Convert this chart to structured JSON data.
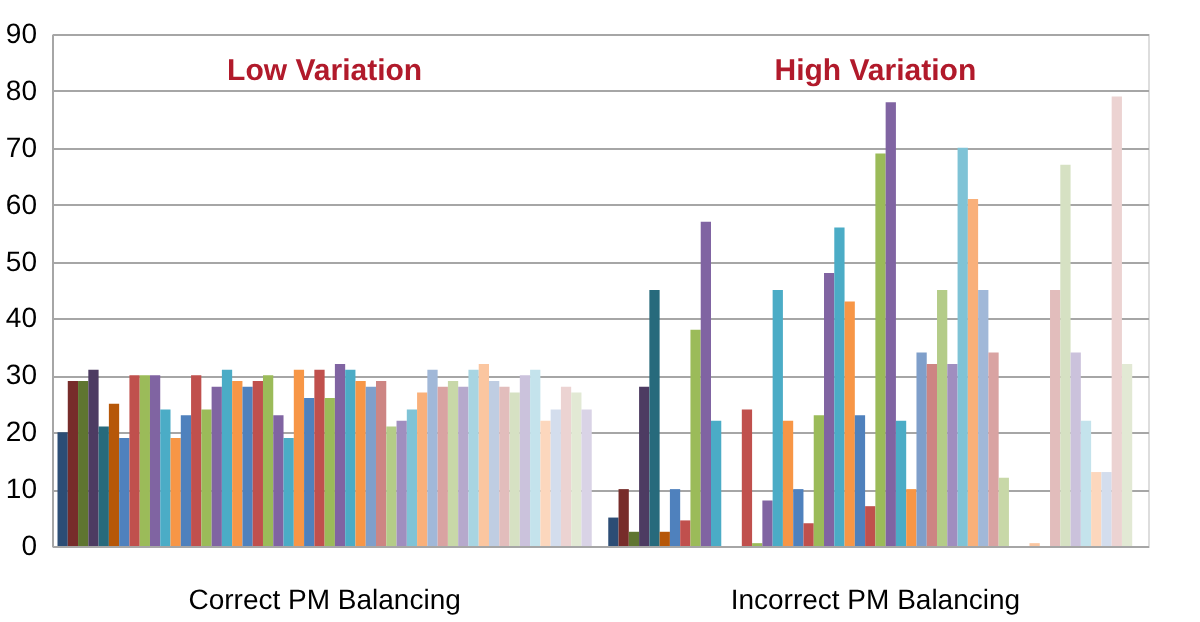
{
  "chart_data": {
    "type": "bar",
    "categories": [
      "Correct PM Balancing",
      "Incorrect PM Balancing"
    ],
    "annotations": [
      "Low Variation",
      "High Variation"
    ],
    "ylim": [
      0,
      90
    ],
    "yticks": [
      0,
      10,
      20,
      30,
      40,
      50,
      60,
      70,
      80,
      90
    ],
    "grid": "y",
    "legend": false,
    "series": [
      {
        "color": "#2c4d75",
        "values": [
          20,
          5
        ]
      },
      {
        "color": "#772c2a",
        "values": [
          29,
          10
        ]
      },
      {
        "color": "#5f7530",
        "values": [
          29,
          2.5
        ]
      },
      {
        "color": "#4d3b62",
        "values": [
          31,
          28
        ]
      },
      {
        "color": "#276a7c",
        "values": [
          21,
          45
        ]
      },
      {
        "color": "#b65708",
        "values": [
          25,
          2.5
        ]
      },
      {
        "color": "#4f81bd",
        "values": [
          19,
          10
        ]
      },
      {
        "color": "#c0504d",
        "values": [
          30,
          4.5
        ]
      },
      {
        "color": "#9bbb59",
        "values": [
          30,
          38
        ]
      },
      {
        "color": "#8064a2",
        "values": [
          30,
          57
        ]
      },
      {
        "color": "#4bacc6",
        "values": [
          24,
          22
        ]
      },
      {
        "color": "#f79646",
        "values": [
          19,
          0
        ]
      },
      {
        "color": "#4f81bd",
        "values": [
          23,
          0
        ]
      },
      {
        "color": "#c0504d",
        "values": [
          30,
          24
        ]
      },
      {
        "color": "#9bbb59",
        "values": [
          24,
          0.5
        ]
      },
      {
        "color": "#8064a2",
        "values": [
          28,
          8
        ]
      },
      {
        "color": "#4bacc6",
        "values": [
          31,
          45
        ]
      },
      {
        "color": "#f79646",
        "values": [
          29,
          22
        ]
      },
      {
        "color": "#4f81bd",
        "values": [
          28,
          10
        ]
      },
      {
        "color": "#c0504d",
        "values": [
          29,
          4
        ]
      },
      {
        "color": "#9bbb59",
        "values": [
          30,
          23
        ]
      },
      {
        "color": "#8064a2",
        "values": [
          23,
          48
        ]
      },
      {
        "color": "#4bacc6",
        "values": [
          19,
          56
        ]
      },
      {
        "color": "#f79646",
        "values": [
          31,
          43
        ]
      },
      {
        "color": "#4f81bd",
        "values": [
          26,
          23
        ]
      },
      {
        "color": "#c0504d",
        "values": [
          31,
          7
        ]
      },
      {
        "color": "#9bbb59",
        "values": [
          26,
          69
        ]
      },
      {
        "color": "#8064a2",
        "values": [
          32,
          78
        ]
      },
      {
        "color": "#4bacc6",
        "values": [
          31,
          22
        ]
      },
      {
        "color": "#f79646",
        "values": [
          29,
          10
        ]
      },
      {
        "color": "#7f9fca",
        "values": [
          28,
          34
        ]
      },
      {
        "color": "#cd8583",
        "values": [
          29,
          32
        ]
      },
      {
        "color": "#b4cc88",
        "values": [
          21,
          45
        ]
      },
      {
        "color": "#a08ebf",
        "values": [
          22,
          32
        ]
      },
      {
        "color": "#7fc3d6",
        "values": [
          24,
          70
        ]
      },
      {
        "color": "#f9b07a",
        "values": [
          27,
          61
        ]
      },
      {
        "color": "#a1b8d8",
        "values": [
          31,
          45
        ]
      },
      {
        "color": "#d9a3a2",
        "values": [
          28,
          34
        ]
      },
      {
        "color": "#c8d8a8",
        "values": [
          29,
          12
        ]
      },
      {
        "color": "#b6a9cc",
        "values": [
          28,
          null
        ]
      },
      {
        "color": "#a8d5e2",
        "values": [
          31,
          null
        ]
      },
      {
        "color": "#fbc6a0",
        "values": [
          32,
          0.5
        ]
      },
      {
        "color": "#bfcde2",
        "values": [
          29,
          0
        ]
      },
      {
        "color": "#e2bdbc",
        "values": [
          28,
          45
        ]
      },
      {
        "color": "#d6e1c3",
        "values": [
          27,
          67
        ]
      },
      {
        "color": "#cbc2dc",
        "values": [
          30,
          34
        ]
      },
      {
        "color": "#c4e3ec",
        "values": [
          31,
          22
        ]
      },
      {
        "color": "#fcd7bd",
        "values": [
          22,
          13
        ]
      },
      {
        "color": "#d3dded",
        "values": [
          24,
          13
        ]
      },
      {
        "color": "#ecd3d2",
        "values": [
          28,
          79
        ]
      },
      {
        "color": "#e2e9d4",
        "values": [
          27,
          32
        ]
      },
      {
        "color": "#d9d3e6",
        "values": [
          24,
          0
        ]
      }
    ]
  }
}
